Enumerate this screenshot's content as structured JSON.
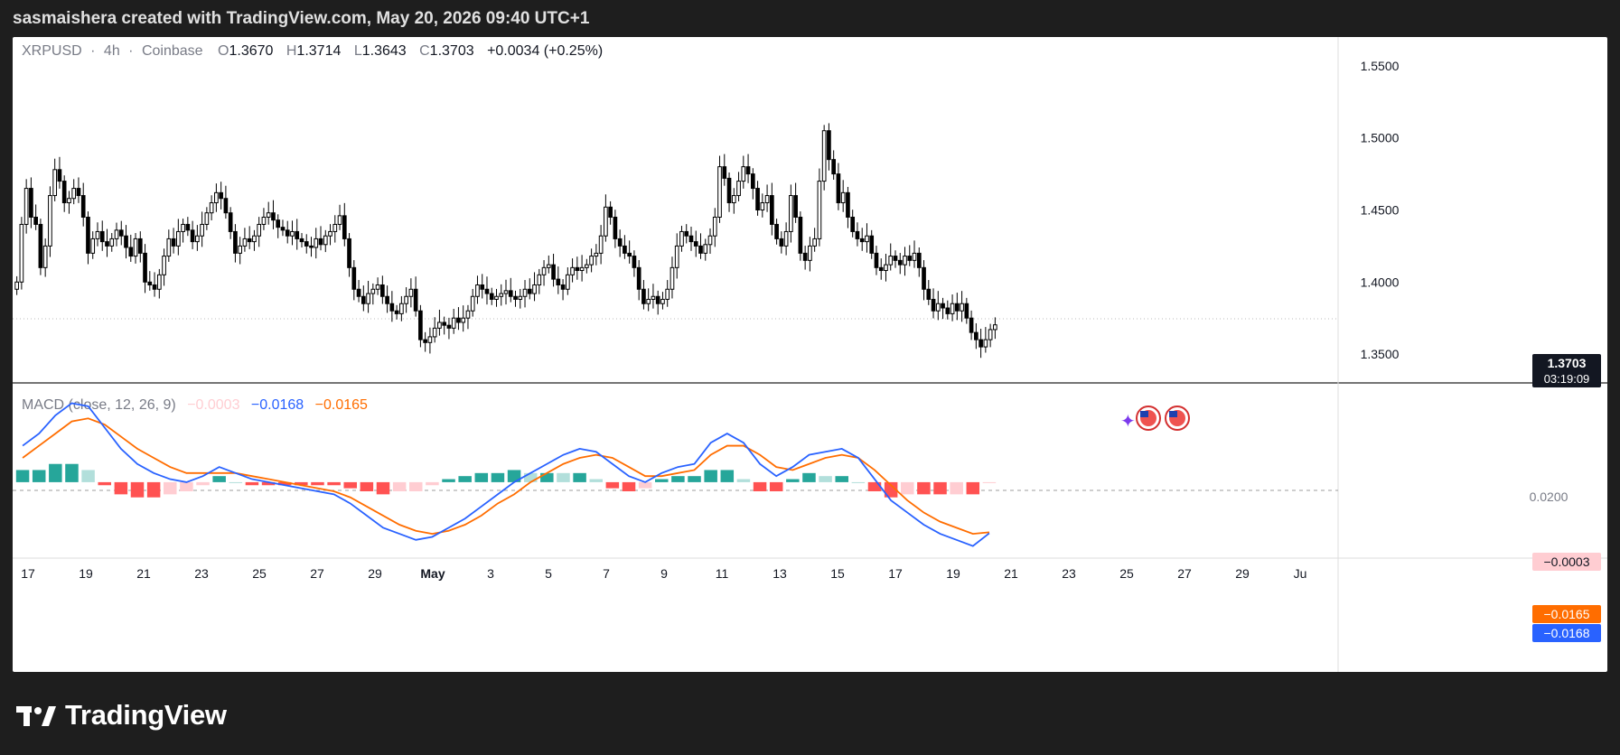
{
  "header": {
    "attribution": "sasmaishera created with TradingView.com, May 20, 2026 09:40 UTC+1"
  },
  "legend": {
    "symbol": "XRPUSD",
    "sep1": "·",
    "interval": "4h",
    "sep2": "·",
    "exchange": "Coinbase",
    "o_label": "O",
    "o_value": "1.3670",
    "h_label": "H",
    "h_value": "1.3714",
    "l_label": "L",
    "l_value": "1.3643",
    "c_label": "C",
    "c_value": "1.3703",
    "change": "+0.0034 (+0.25%)"
  },
  "price_axis": {
    "ticks": [
      "1.5500",
      "1.5000",
      "1.4500",
      "1.4000",
      "1.3500"
    ],
    "last_price": "1.3703",
    "countdown": "03:19:09"
  },
  "macd_legend": {
    "name": "MACD (close, 12, 26, 9)",
    "histogram": "−0.0003",
    "macd": "−0.0168",
    "signal": "−0.0165"
  },
  "macd_axis": {
    "tick": "0.0200",
    "hist_label": "−0.0003",
    "signal_label": "−0.0165",
    "macd_label": "−0.0168"
  },
  "time_axis": {
    "ticks": [
      "17",
      "19",
      "21",
      "23",
      "25",
      "27",
      "29",
      "May",
      "3",
      "5",
      "7",
      "9",
      "11",
      "13",
      "15",
      "17",
      "19",
      "21",
      "23",
      "25",
      "27",
      "29",
      "Ju"
    ]
  },
  "colors": {
    "macd_line": "#2962ff",
    "signal_line": "#ff6d00",
    "hist_pos_strong": "#26a69a",
    "hist_pos_weak": "#b2dfdb",
    "hist_neg_strong": "#ff5252",
    "hist_neg_weak": "#ffcdd2",
    "candle": "#000000",
    "background": "#ffffff"
  },
  "chart_data": {
    "type": "candlestick",
    "title": "XRPUSD · 4h · Coinbase",
    "ylim": [
      1.33,
      1.57
    ],
    "y_ticks": [
      1.35,
      1.4,
      1.45,
      1.5,
      1.55
    ],
    "x_range": [
      "Apr 16",
      "Jun 1"
    ],
    "bar_interval": "4h",
    "grid": false,
    "last_candle": {
      "open": 1.367,
      "high": 1.3714,
      "low": 1.3643,
      "close": 1.3703
    },
    "closes": [
      1.4,
      1.44,
      1.465,
      1.445,
      1.44,
      1.41,
      1.425,
      1.46,
      1.478,
      1.47,
      1.455,
      1.458,
      1.465,
      1.46,
      1.445,
      1.42,
      1.43,
      1.435,
      1.428,
      1.425,
      1.43,
      1.436,
      1.432,
      1.424,
      1.418,
      1.43,
      1.42,
      1.4,
      1.398,
      1.395,
      1.405,
      1.418,
      1.43,
      1.425,
      1.435,
      1.44,
      1.436,
      1.428,
      1.432,
      1.44,
      1.448,
      1.455,
      1.462,
      1.458,
      1.448,
      1.435,
      1.42,
      1.425,
      1.43,
      1.428,
      1.432,
      1.44,
      1.445,
      1.448,
      1.443,
      1.438,
      1.436,
      1.432,
      1.435,
      1.43,
      1.428,
      1.425,
      1.424,
      1.43,
      1.426,
      1.432,
      1.435,
      1.44,
      1.446,
      1.43,
      1.41,
      1.395,
      1.39,
      1.385,
      1.392,
      1.395,
      1.398,
      1.39,
      1.385,
      1.38,
      1.378,
      1.385,
      1.39,
      1.395,
      1.38,
      1.36,
      1.358,
      1.362,
      1.368,
      1.372,
      1.37,
      1.368,
      1.375,
      1.372,
      1.375,
      1.38,
      1.39,
      1.398,
      1.395,
      1.392,
      1.388,
      1.39,
      1.392,
      1.394,
      1.39,
      1.388,
      1.39,
      1.395,
      1.392,
      1.398,
      1.405,
      1.41,
      1.412,
      1.402,
      1.398,
      1.395,
      1.405,
      1.41,
      1.408,
      1.41,
      1.412,
      1.418,
      1.42,
      1.432,
      1.452,
      1.445,
      1.43,
      1.425,
      1.42,
      1.418,
      1.41,
      1.395,
      1.385,
      1.388,
      1.39,
      1.385,
      1.388,
      1.395,
      1.41,
      1.425,
      1.435,
      1.432,
      1.428,
      1.425,
      1.42,
      1.426,
      1.432,
      1.445,
      1.48,
      1.472,
      1.455,
      1.46,
      1.47,
      1.48,
      1.475,
      1.465,
      1.45,
      1.455,
      1.46,
      1.44,
      1.43,
      1.425,
      1.435,
      1.46,
      1.445,
      1.42,
      1.415,
      1.425,
      1.43,
      1.47,
      1.505,
      1.485,
      1.475,
      1.455,
      1.462,
      1.445,
      1.435,
      1.43,
      1.428,
      1.432,
      1.42,
      1.41,
      1.408,
      1.412,
      1.418,
      1.415,
      1.412,
      1.418,
      1.415,
      1.42,
      1.41,
      1.395,
      1.388,
      1.38,
      1.385,
      1.382,
      1.378,
      1.385,
      1.38,
      1.385,
      1.375,
      1.365,
      1.36,
      1.355,
      1.36,
      1.367,
      1.37
    ]
  },
  "macd_data": {
    "ylim": [
      -0.025,
      0.03
    ],
    "y_ticks": [
      0.02
    ],
    "macd": [
      0.012,
      0.016,
      0.022,
      0.026,
      0.025,
      0.018,
      0.011,
      0.006,
      0.003,
      0.001,
      0.0,
      0.002,
      0.005,
      0.003,
      0.001,
      0.0,
      -0.001,
      -0.002,
      -0.003,
      -0.004,
      -0.007,
      -0.011,
      -0.015,
      -0.017,
      -0.019,
      -0.018,
      -0.015,
      -0.012,
      -0.008,
      -0.004,
      0.0,
      0.003,
      0.006,
      0.009,
      0.011,
      0.01,
      0.006,
      0.002,
      0.0,
      0.003,
      0.005,
      0.006,
      0.013,
      0.016,
      0.013,
      0.006,
      0.002,
      0.005,
      0.009,
      0.01,
      0.011,
      0.008,
      0.001,
      -0.006,
      -0.01,
      -0.014,
      -0.017,
      -0.019,
      -0.021,
      -0.0168
    ],
    "signal": [
      0.008,
      0.012,
      0.016,
      0.02,
      0.021,
      0.019,
      0.015,
      0.011,
      0.008,
      0.005,
      0.003,
      0.003,
      0.003,
      0.003,
      0.002,
      0.001,
      0.0,
      -0.001,
      -0.002,
      -0.003,
      -0.005,
      -0.008,
      -0.011,
      -0.014,
      -0.016,
      -0.017,
      -0.016,
      -0.014,
      -0.011,
      -0.007,
      -0.004,
      0.0,
      0.003,
      0.006,
      0.008,
      0.009,
      0.008,
      0.005,
      0.002,
      0.002,
      0.003,
      0.004,
      0.009,
      0.012,
      0.012,
      0.009,
      0.005,
      0.004,
      0.006,
      0.008,
      0.009,
      0.008,
      0.004,
      -0.001,
      -0.006,
      -0.01,
      -0.013,
      -0.015,
      -0.017,
      -0.0165
    ]
  }
}
